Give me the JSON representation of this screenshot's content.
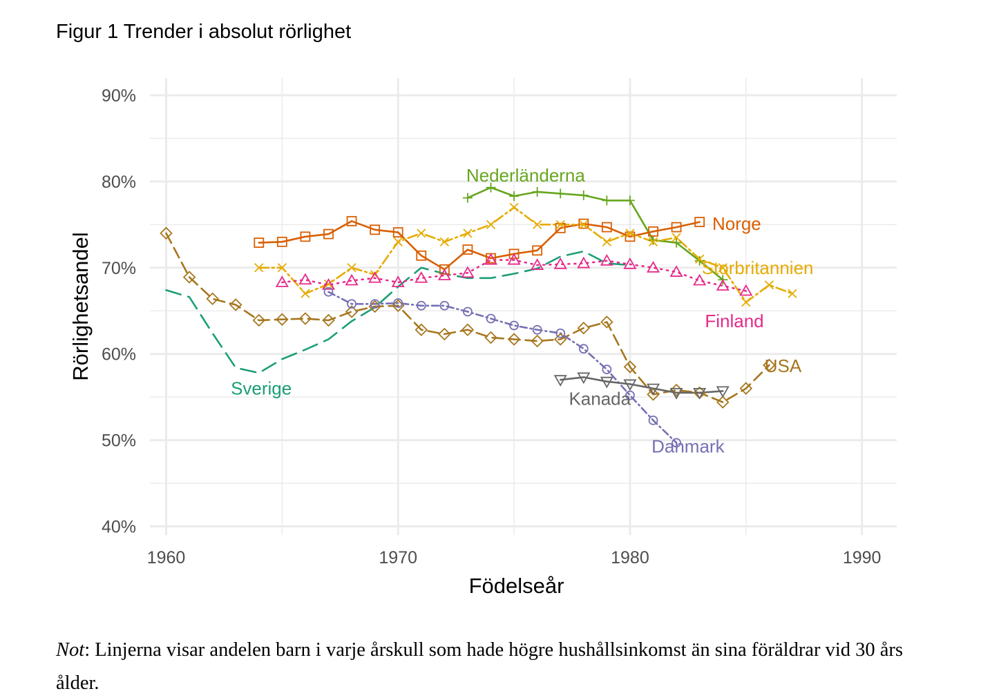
{
  "figure": {
    "title": "Figur 1 Trender i absolut rörlighet",
    "note_label": "Not",
    "note_text": ": Linjerna visar andelen barn i varje årskull som hade högre hushållsinkomst än sina föräldrar vid 30 års ålder."
  },
  "chart_data": {
    "type": "line",
    "title": "",
    "xlabel": "Födelseår",
    "ylabel": "Rörlighetsandel",
    "xlim": [
      1959.3,
      1991.5
    ],
    "ylim": [
      39,
      92
    ],
    "x_ticks": [
      1960,
      1970,
      1980,
      1990
    ],
    "y_ticks": [
      40,
      50,
      60,
      70,
      80,
      90
    ],
    "y_tick_labels": [
      "40%",
      "50%",
      "60%",
      "70%",
      "80%",
      "90%"
    ],
    "grid": true,
    "legend": "direct labels",
    "series": [
      {
        "name": "Sverige",
        "color": "#1b9e77",
        "dash": "22,11",
        "marker": "none",
        "label_pos": [
          1964.1,
          56.0
        ],
        "x": [
          1960,
          1961,
          1962,
          1963,
          1964,
          1965,
          1966,
          1967,
          1968,
          1969,
          1970,
          1971,
          1972,
          1973,
          1974,
          1975,
          1976,
          1977,
          1978,
          1979,
          1980
        ],
        "y": [
          67.4,
          66.6,
          62.4,
          58.4,
          57.8,
          59.4,
          60.5,
          61.7,
          63.8,
          65.4,
          67.8,
          70.0,
          69.3,
          68.8,
          68.8,
          69.3,
          69.9,
          71.3,
          71.9,
          70.5,
          70.3
        ]
      },
      {
        "name": "Nederländerna",
        "color": "#66a61e",
        "dash": "",
        "marker": "plus",
        "label_pos": [
          1975.5,
          80.7
        ],
        "x": [
          1973,
          1974,
          1975,
          1976,
          1977,
          1978,
          1979,
          1980,
          1981,
          1982,
          1983,
          1984
        ],
        "y": [
          78.1,
          79.3,
          78.3,
          78.8,
          78.6,
          78.4,
          77.8,
          77.8,
          73.2,
          72.9,
          70.8,
          68.6
        ]
      },
      {
        "name": "Norge",
        "color": "#d95f02",
        "dash": "",
        "marker": "square",
        "label_pos": [
          1984.6,
          75.1
        ],
        "x": [
          1964,
          1965,
          1966,
          1967,
          1968,
          1969,
          1970,
          1971,
          1972,
          1973,
          1974,
          1975,
          1976,
          1977,
          1978,
          1979,
          1980,
          1981,
          1982,
          1983
        ],
        "y": [
          72.9,
          73.0,
          73.6,
          73.9,
          75.4,
          74.4,
          74.1,
          71.4,
          69.8,
          72.1,
          71.1,
          71.6,
          72.0,
          74.6,
          75.1,
          74.7,
          73.6,
          74.2,
          74.7,
          75.3
        ]
      },
      {
        "name": "Storbritannien",
        "color": "#e6ab02",
        "dash": "14,5,3,5",
        "marker": "x",
        "label_pos": [
          1985.5,
          70.0
        ],
        "x": [
          1964,
          1965,
          1966,
          1967,
          1968,
          1969,
          1970,
          1971,
          1972,
          1973,
          1974,
          1975,
          1976,
          1977,
          1978,
          1979,
          1980,
          1981,
          1982,
          1983,
          1984,
          1985,
          1986,
          1987
        ],
        "y": [
          70.0,
          70.0,
          67.0,
          68.1,
          70.0,
          69.2,
          73.0,
          74.0,
          73.0,
          74.0,
          75.0,
          77.0,
          75.0,
          75.0,
          75.0,
          73.0,
          74.0,
          73.0,
          73.5,
          71.0,
          70.0,
          66.0,
          68.0,
          67.0
        ]
      },
      {
        "name": "Finland",
        "color": "#e7298a",
        "dash": "2,7",
        "marker": "triangle",
        "label_pos": [
          1984.5,
          63.8
        ],
        "x": [
          1965,
          1966,
          1967,
          1968,
          1969,
          1970,
          1971,
          1972,
          1973,
          1974,
          1975,
          1976,
          1977,
          1978,
          1979,
          1980,
          1981,
          1982,
          1983,
          1984,
          1985
        ],
        "y": [
          68.3,
          68.6,
          68.0,
          68.5,
          68.8,
          68.3,
          68.8,
          69.1,
          69.4,
          70.9,
          70.9,
          70.3,
          70.4,
          70.5,
          70.8,
          70.4,
          70.0,
          69.5,
          68.5,
          67.9,
          67.3
        ]
      },
      {
        "name": "USA",
        "color": "#a6761d",
        "dash": "16,8",
        "marker": "diamond",
        "label_pos": [
          1986.6,
          58.6
        ],
        "x": [
          1960,
          1961,
          1962,
          1963,
          1964,
          1965,
          1966,
          1967,
          1968,
          1969,
          1970,
          1971,
          1972,
          1973,
          1974,
          1975,
          1976,
          1977,
          1978,
          1979,
          1980,
          1981,
          1982,
          1983,
          1984,
          1985,
          1986
        ],
        "y": [
          74.0,
          68.9,
          66.4,
          65.7,
          63.9,
          64.0,
          64.1,
          63.9,
          64.9,
          65.5,
          65.6,
          62.8,
          62.3,
          62.8,
          61.9,
          61.7,
          61.5,
          61.7,
          63.0,
          63.7,
          58.5,
          55.3,
          55.8,
          55.5,
          54.4,
          56.0,
          58.7
        ]
      },
      {
        "name": "Danmark",
        "color": "#7570b3",
        "dash": "10,5,2,5",
        "marker": "circle",
        "label_pos": [
          1982.5,
          49.3
        ],
        "x": [
          1967,
          1968,
          1969,
          1970,
          1971,
          1972,
          1973,
          1974,
          1975,
          1976,
          1977,
          1978,
          1979,
          1980,
          1981,
          1982
        ],
        "y": [
          67.2,
          65.8,
          65.8,
          65.9,
          65.6,
          65.6,
          64.9,
          64.1,
          63.3,
          62.8,
          62.4,
          60.6,
          58.2,
          55.2,
          52.3,
          49.7
        ]
      },
      {
        "name": "Kanada",
        "color": "#666666",
        "dash": "",
        "marker": "triangle-down",
        "label_pos": [
          1978.7,
          54.8
        ],
        "x": [
          1977,
          1978,
          1979,
          1980,
          1981,
          1982,
          1983,
          1984
        ],
        "y": [
          57.0,
          57.3,
          56.8,
          56.5,
          56.0,
          55.5,
          55.5,
          55.7
        ]
      }
    ]
  }
}
